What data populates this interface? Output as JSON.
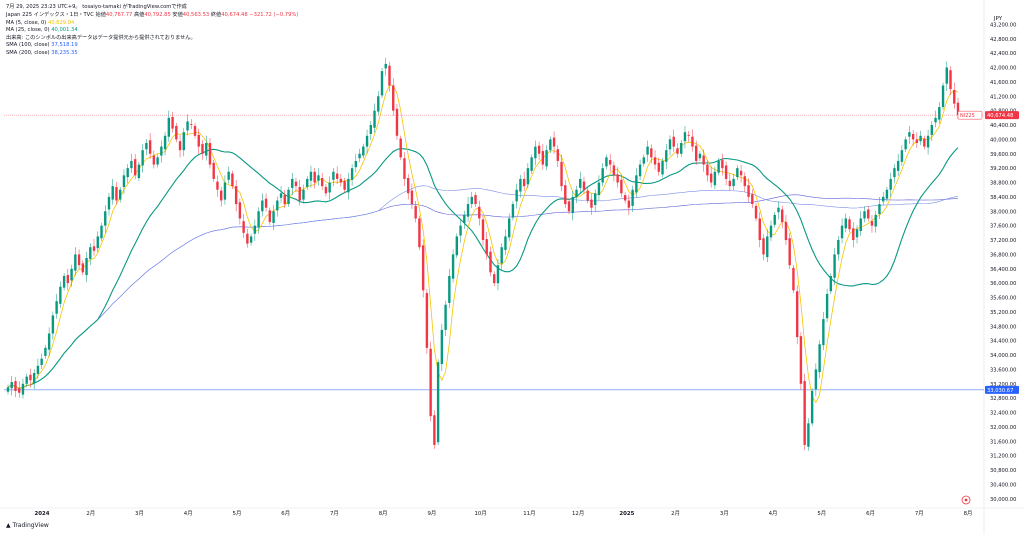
{
  "header": {
    "text": "7月 29, 2025 23:23 UTC+9。 tosaiyo-tamaki がTradingView.comで作成"
  },
  "legend": {
    "title": "Japan 225 インデックス・1日・TVC",
    "open_label": "始値",
    "open": "40,767.77",
    "high_label": "高値",
    "high": "40,792.85",
    "low_label": "安値",
    "low": "40,563.53",
    "close_label": "終値",
    "close": "40,674.48",
    "change": "−321.72 (−0.79%)",
    "ma5_label": "MA (5, close, 0)",
    "ma5_value": "40,829.04",
    "ma25_label": "MA (25, close, 0)",
    "ma25_value": "40,001.34",
    "volume_note": "出来高: このシンボルの出来高データはデータ提供元から提供されておりません。",
    "sma100_label": "SMA (100, close)",
    "sma100_value": "37,518.19",
    "sma200_label": "SMA (200, close)",
    "sma200_value": "38,235.35"
  },
  "footer": {
    "logo_text": "TradingView"
  },
  "chart_data": {
    "type": "candlestick",
    "currency": "JPY",
    "y_ticks": [
      30000,
      30400,
      30800,
      31200,
      31600,
      32000,
      32400,
      32800,
      33200,
      33600,
      34000,
      34400,
      34800,
      35200,
      35600,
      36000,
      36400,
      36800,
      37200,
      37600,
      38000,
      38400,
      38800,
      39200,
      39600,
      40000,
      40400,
      40800,
      41200,
      41600,
      42000,
      42400,
      42800,
      43200
    ],
    "y_tick_labels": [
      "30,000.00",
      "30,400.00",
      "30,800.00",
      "31,200.00",
      "31,600.00",
      "32,000.00",
      "32,400.00",
      "32,800.00",
      "33,200.00",
      "33,600.00",
      "34,000.00",
      "34,400.00",
      "34,800.00",
      "35,200.00",
      "35,600.00",
      "36,000.00",
      "36,400.00",
      "36,800.00",
      "37,200.00",
      "37,600.00",
      "38,000.00",
      "38,400.00",
      "38,800.00",
      "39,200.00",
      "39,600.00",
      "40,000.00",
      "40,400.00",
      "40,800.00",
      "41,200.00",
      "41,600.00",
      "42,000.00",
      "42,400.00",
      "42,800.00",
      "43,200.00"
    ],
    "ylim": [
      29800,
      43600
    ],
    "x_labels": [
      "2024",
      "2月",
      "3月",
      "4月",
      "5月",
      "6月",
      "7月",
      "8月",
      "9月",
      "10月",
      "11月",
      "12月",
      "2025",
      "2月",
      "3月",
      "4月",
      "5月",
      "6月",
      "7月",
      "8月"
    ],
    "x_label_bold": [
      "2024",
      "2025"
    ],
    "price_labels": [
      {
        "text": "40,674.48",
        "value": 40674.48,
        "color": "#f23645"
      },
      {
        "text": "33,030.67",
        "value": 33030.67,
        "color": "#2962ff"
      }
    ],
    "ni_label": "NI225",
    "horizontal_lines": [
      {
        "value": 40674.48,
        "color": "#f23645"
      },
      {
        "value": 33030.67,
        "color": "#2962ff"
      }
    ],
    "closes": [
      33100,
      33250,
      33000,
      32950,
      33200,
      33400,
      33300,
      33500,
      33700,
      33900,
      34200,
      34600,
      35100,
      35500,
      35900,
      36200,
      36000,
      36400,
      36800,
      36500,
      36300,
      36700,
      37000,
      36900,
      37300,
      37600,
      38000,
      38400,
      38700,
      38300,
      38600,
      39000,
      39200,
      39400,
      39000,
      39300,
      39700,
      39900,
      39600,
      39300,
      39500,
      39800,
      40100,
      40600,
      40300,
      40000,
      39700,
      40200,
      40500,
      40400,
      40100,
      39800,
      39600,
      39900,
      39300,
      38900,
      38600,
      38300,
      38800,
      39100,
      38700,
      38200,
      37800,
      37400,
      37100,
      37300,
      37600,
      38000,
      38300,
      38100,
      37700,
      38000,
      38300,
      38500,
      38200,
      38600,
      38900,
      38700,
      38300,
      38600,
      38900,
      39100,
      38800,
      39000,
      38700,
      38500,
      38800,
      39100,
      38900,
      38800,
      38600,
      38900,
      39200,
      39400,
      39600,
      39800,
      40100,
      40400,
      40800,
      41200,
      41900,
      42100,
      41500,
      40800,
      40100,
      39500,
      38900,
      38500,
      38200,
      37800,
      37000,
      35800,
      34200,
      32300,
      31500,
      33800,
      34700,
      35400,
      36200,
      36800,
      37300,
      37600,
      37900,
      38200,
      38400,
      38200,
      37800,
      37200,
      36800,
      36300,
      36000,
      36500,
      37000,
      37300,
      37800,
      38200,
      38600,
      38900,
      38700,
      39200,
      39500,
      39800,
      39600,
      39300,
      39700,
      40000,
      39800,
      39400,
      38700,
      38200,
      38000,
      38400,
      38600,
      38900,
      38600,
      38300,
      38100,
      38500,
      38800,
      39200,
      39500,
      39300,
      39000,
      38800,
      38500,
      38300,
      38100,
      38600,
      39000,
      39300,
      39500,
      39800,
      39500,
      39300,
      39100,
      39400,
      39700,
      40000,
      39800,
      39600,
      39900,
      40200,
      40100,
      39800,
      39400,
      39600,
      39300,
      39000,
      38800,
      39100,
      39400,
      39200,
      38900,
      38700,
      38900,
      39200,
      39000,
      38700,
      38400,
      38200,
      37800,
      37200,
      36800,
      37300,
      37600,
      37900,
      38100,
      37700,
      37200,
      36500,
      35800,
      34500,
      33200,
      31500,
      32100,
      33000,
      33600,
      34300,
      35000,
      35700,
      36200,
      36800,
      37200,
      37600,
      37800,
      37500,
      37200,
      37500,
      37800,
      38000,
      37800,
      37600,
      37900,
      38200,
      38400,
      38600,
      38900,
      39200,
      39400,
      39700,
      40000,
      40200,
      40000,
      39900,
      40100,
      39800,
      40100,
      40400,
      40600,
      40900,
      41500,
      42000,
      41400,
      40995,
      40674
    ]
  }
}
